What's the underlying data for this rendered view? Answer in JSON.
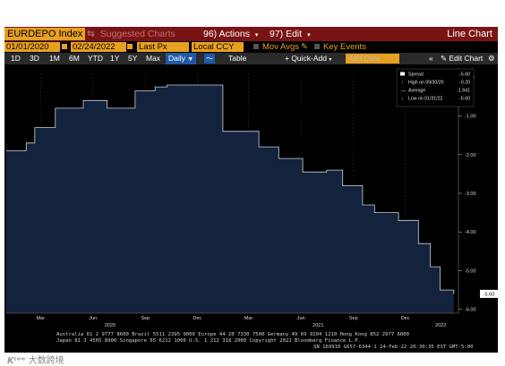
{
  "toolbar": {
    "ticker": "EURDEPO Index",
    "suggested": "Suggested Charts",
    "actions": "96) Actions",
    "edit": "97) Edit",
    "chart_label": "Line Chart"
  },
  "params": {
    "start_date": "01/01/2020",
    "end_date": "02/24/2022",
    "field": "Last Px",
    "currency": "Local CCY",
    "mov_avgs": "Mov Avgs",
    "key_events": "Key Events"
  },
  "periods": [
    "1D",
    "3D",
    "1M",
    "6M",
    "YTD",
    "1Y",
    "5Y",
    "Max"
  ],
  "periodicity": "Daily",
  "table_label": "Table",
  "quick_add": "+ Quick-Add",
  "add_data_placeholder": "Add Data",
  "edit_chart": "Edit Chart",
  "legend": {
    "spread": {
      "label": "Spread",
      "value": "-5.60"
    },
    "high": {
      "label": "High on 09/30/20",
      "value": "-0.20"
    },
    "average": {
      "label": "Average",
      "value": "-1.941"
    },
    "low": {
      "label": "Low on 01/31/22",
      "value": "-5.60"
    }
  },
  "last_value_label": "-5.60",
  "footer": {
    "line1": "Australia 61 2 9777 8600 Brazil 5511 2395 9000 Europe 44 20 7330 7500 Germany 49 69 9204 1210 Hong Kong 852 2977 6000",
    "line2": "Japan 81 3 4565 8900          Singapore 65 6212 1000          U.S. 1 212 318 2000          Copyright 2022 Bloomberg Finance L.P.",
    "line3": "SN 169910 G657-6344-1 24-Feb-22 20:30:35 EST  GMT-5:00"
  },
  "watermark": "大数跨境",
  "colors": {
    "area_fill": "#13233b",
    "area_line": "#c8d2e0",
    "header_red": "#7a1414",
    "amber": "#e8a020"
  },
  "chart_data": {
    "type": "area",
    "series": [
      {
        "name": "Spread",
        "x": [
          "2020-01-01",
          "2020-02-05",
          "2020-02-20",
          "2020-03-27",
          "2020-04-17",
          "2020-05-15",
          "2020-06-05",
          "2020-06-26",
          "2020-07-24",
          "2020-08-14",
          "2020-09-18",
          "2020-10-09",
          "2020-12-25",
          "2021-01-15",
          "2021-02-26",
          "2021-03-19",
          "2021-04-23",
          "2021-05-14",
          "2021-06-04",
          "2021-07-16",
          "2021-08-13",
          "2021-09-17",
          "2021-10-08",
          "2021-11-19",
          "2021-12-24",
          "2022-01-14",
          "2022-01-31",
          "2022-02-24"
        ],
        "values": [
          -1.9,
          -1.7,
          -1.3,
          -0.8,
          -0.8,
          -0.6,
          -0.6,
          -0.8,
          -0.8,
          -0.35,
          -0.25,
          -0.2,
          -0.2,
          -1.4,
          -1.4,
          -1.8,
          -2.1,
          -2.1,
          -2.45,
          -2.4,
          -2.8,
          -3.3,
          -3.5,
          -3.7,
          -4.3,
          -4.9,
          -5.5,
          -5.6
        ]
      }
    ],
    "xticks": [
      {
        "x": "2020-03-01",
        "label": "Mar"
      },
      {
        "x": "2020-06-01",
        "label": "Jun"
      },
      {
        "x": "2020-09-01",
        "label": "Sep"
      },
      {
        "x": "2020-12-01",
        "label": "Dec"
      },
      {
        "x": "2021-03-01",
        "label": "Mar"
      },
      {
        "x": "2021-06-01",
        "label": "Jun"
      },
      {
        "x": "2021-09-01",
        "label": "Sep"
      },
      {
        "x": "2021-12-01",
        "label": "Dec"
      }
    ],
    "year_labels": [
      {
        "x": "2020-07-01",
        "label": "2020"
      },
      {
        "x": "2021-07-01",
        "label": "2021"
      },
      {
        "x": "2022-02-01",
        "label": "2022"
      }
    ],
    "yticks": [
      0.0,
      -1.0,
      -2.0,
      -3.0,
      -4.0,
      -5.0,
      -6.0
    ],
    "ytick_labels": [
      "0.00",
      "-1.00",
      "-2.00",
      "-3.00",
      "-4.00",
      "-5.00",
      "-6.00"
    ],
    "ylim": [
      -6.1,
      0.1
    ],
    "xlim": [
      "2020-01-01",
      "2022-03-01"
    ],
    "grid": "vertical",
    "legend_position": "top-right"
  }
}
